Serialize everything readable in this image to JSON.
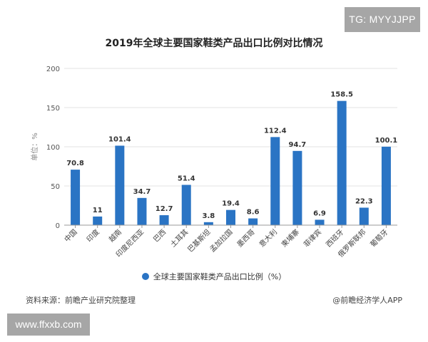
{
  "watermark_badge": "TG: MYYJJPP",
  "url_badge": "www.ffxxb.com",
  "source": "资料来源：前瞻产业研究院整理",
  "credit": "@前瞻经济学人APP",
  "chart_data": {
    "type": "bar",
    "title": "2019年全球主要国家鞋类产品出口比例对比情况",
    "xlabel": "",
    "ylabel": "单位：%",
    "ylim": [
      0,
      200
    ],
    "yticks": [
      0,
      50,
      100,
      150,
      200
    ],
    "grid": true,
    "legend_position": "bottom",
    "categories": [
      "中国",
      "印度",
      "越南",
      "印度尼西亚",
      "巴西",
      "土耳其",
      "巴基斯坦",
      "孟加拉国",
      "墨西哥",
      "意大利",
      "柬埔寨",
      "菲律宾",
      "西班牙",
      "俄罗斯联邦",
      "葡萄牙"
    ],
    "series": [
      {
        "name": "全球主要国家鞋类产品出口比例（%）",
        "color": "#2a74c4",
        "values": [
          70.8,
          11,
          101.4,
          34.7,
          12.7,
          51.4,
          3.8,
          19.4,
          8.6,
          112.4,
          94.7,
          6.9,
          158.5,
          22.3,
          100.1
        ],
        "labels": [
          "70.8",
          "11",
          "101.4",
          "34.7",
          "12.7",
          "51.4",
          "3.8",
          "19.4",
          "8.6",
          "112.4",
          "94.7",
          "6.9",
          "158.5",
          "22.3",
          "100.1"
        ]
      }
    ]
  }
}
